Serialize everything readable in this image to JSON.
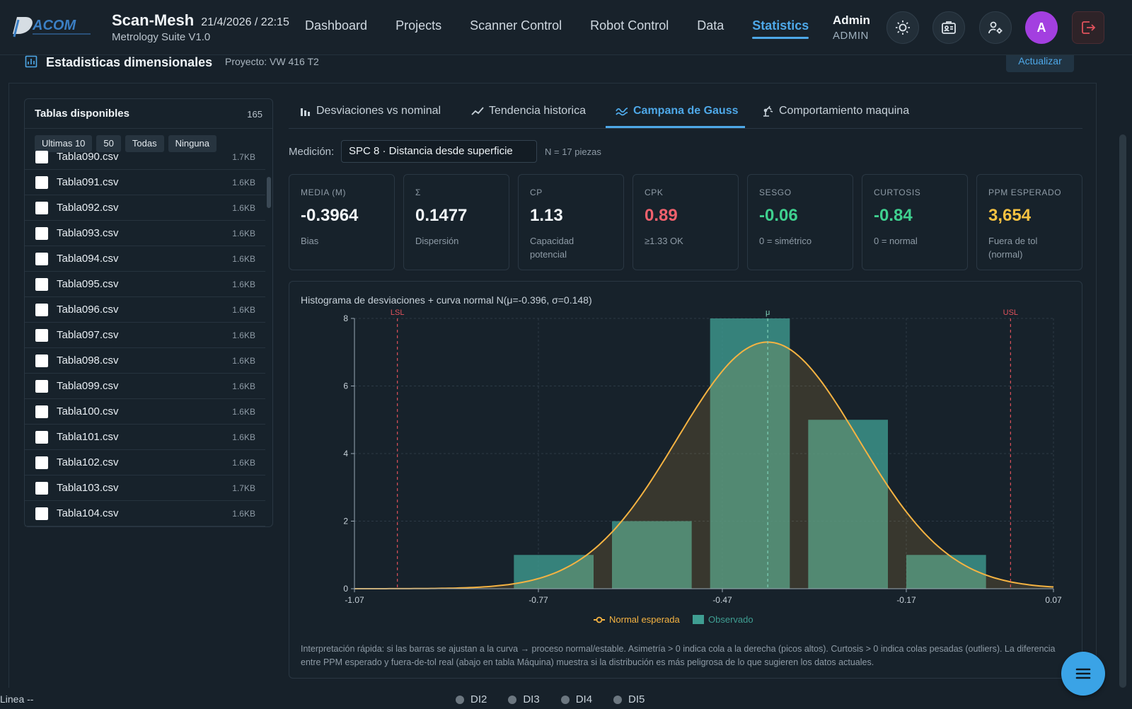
{
  "header": {
    "title": "Scan-Mesh",
    "datetime": "21/4/2026 / 22:15",
    "subtitle": "Metrology Suite V1.0",
    "nav": [
      "Dashboard",
      "Projects",
      "Scanner Control",
      "Robot Control",
      "Data",
      "Statistics"
    ],
    "active_nav": "Statistics",
    "user_name": "Admin",
    "user_role": "ADMIN",
    "avatar_letter": "A",
    "icons": [
      "sun-icon",
      "id-card-icon",
      "user-settings-icon",
      "logout-icon"
    ]
  },
  "page": {
    "title": "Estadisticas dimensionales",
    "project": "Proyecto: VW 416 T2",
    "refresh_label": "Actualizar"
  },
  "tables_panel": {
    "title": "Tablas disponibles",
    "count": "165",
    "filters": [
      "Ultimas 10",
      "50",
      "Todas",
      "Ninguna"
    ],
    "files": [
      {
        "name": "Tabla090.csv",
        "size": "1.7KB"
      },
      {
        "name": "Tabla091.csv",
        "size": "1.6KB"
      },
      {
        "name": "Tabla092.csv",
        "size": "1.6KB"
      },
      {
        "name": "Tabla093.csv",
        "size": "1.6KB"
      },
      {
        "name": "Tabla094.csv",
        "size": "1.6KB"
      },
      {
        "name": "Tabla095.csv",
        "size": "1.6KB"
      },
      {
        "name": "Tabla096.csv",
        "size": "1.6KB"
      },
      {
        "name": "Tabla097.csv",
        "size": "1.6KB"
      },
      {
        "name": "Tabla098.csv",
        "size": "1.6KB"
      },
      {
        "name": "Tabla099.csv",
        "size": "1.6KB"
      },
      {
        "name": "Tabla100.csv",
        "size": "1.6KB"
      },
      {
        "name": "Tabla101.csv",
        "size": "1.6KB"
      },
      {
        "name": "Tabla102.csv",
        "size": "1.6KB"
      },
      {
        "name": "Tabla103.csv",
        "size": "1.7KB"
      },
      {
        "name": "Tabla104.csv",
        "size": "1.6KB"
      }
    ]
  },
  "tabs": [
    {
      "label": "Desviaciones vs nominal",
      "icon": "bar-chart-icon"
    },
    {
      "label": "Tendencia historica",
      "icon": "trend-line-icon"
    },
    {
      "label": "Campana de Gauss",
      "icon": "bell-curve-icon",
      "active": true
    },
    {
      "label": "Comportamiento maquina",
      "icon": "machine-icon"
    }
  ],
  "measurement": {
    "label": "Medición:",
    "value": "SPC 8 · Distancia desde superficie",
    "n": "N = 17 piezas"
  },
  "cards": [
    {
      "label": "MEDIA (M)",
      "value": "-0.3964",
      "sub": "Bias",
      "color": "#f2f6f9"
    },
    {
      "label": "Σ",
      "value": "0.1477",
      "sub": "Dispersión",
      "color": "#f2f6f9"
    },
    {
      "label": "CP",
      "value": "1.13",
      "sub": "Capacidad potencial",
      "color": "#f2f6f9"
    },
    {
      "label": "CPK",
      "value": "0.89",
      "sub": "≥1.33 OK",
      "color": "#f0616d"
    },
    {
      "label": "SESGO",
      "value": "-0.06",
      "sub": "0 = simétrico",
      "color": "#3fd08f"
    },
    {
      "label": "CURTOSIS",
      "value": "-0.84",
      "sub": "0 = normal",
      "color": "#3fd08f"
    },
    {
      "label": "PPM ESPERADO",
      "value": "3,654",
      "sub": "Fuera de tol (normal)",
      "color": "#f5c242"
    }
  ],
  "chart": {
    "title": "Histograma de desviaciones + curva normal N(μ=-0.396, σ=0.148)",
    "interpretation": "Interpretación rápida: si las barras se ajustan a la curva → proceso normal/estable. Asimetría > 0 indica cola a la derecha (picos altos). Curtosis > 0 indica colas pesadas (outliers). La diferencia entre PPM esperado y fuera-de-tol real (abajo en tabla Máquina) muestra si la distribución es más peligrosa de lo que sugieren los datos actuales."
  },
  "chart_data": {
    "type": "bar",
    "title": "Histograma de desviaciones + curva normal N(μ=-0.396, σ=0.148)",
    "x_ticks": [
      -1.07,
      -0.77,
      -0.47,
      -0.17,
      0.07
    ],
    "x_tick_labels": [
      "-1.07",
      "-0.77",
      "-0.47",
      "-0.17",
      "0.07"
    ],
    "xlim": [
      -1.07,
      0.07
    ],
    "ylim": [
      0,
      8
    ],
    "y_ticks": [
      0,
      2,
      4,
      6,
      8
    ],
    "bins": [
      {
        "x0": -0.81,
        "x1": -0.68,
        "count": 1
      },
      {
        "x0": -0.65,
        "x1": -0.52,
        "count": 2
      },
      {
        "x0": -0.49,
        "x1": -0.36,
        "count": 8
      },
      {
        "x0": -0.33,
        "x1": -0.2,
        "count": 5
      },
      {
        "x0": -0.17,
        "x1": -0.04,
        "count": 1
      }
    ],
    "normal_curve": {
      "mu": -0.396,
      "sigma": 0.148,
      "peak": 7.3
    },
    "markers": [
      {
        "label": "LSL",
        "x": -1.0,
        "color": "#e0525c"
      },
      {
        "label": "μ",
        "x": -0.396,
        "color": "#7fd1b9"
      },
      {
        "label": "USL",
        "x": 0.0,
        "color": "#e0525c"
      }
    ],
    "legend": [
      {
        "name": "Normal esperada",
        "color": "#f5b342"
      },
      {
        "name": "Observado",
        "color": "#3f9e92"
      }
    ],
    "legend_position": "bottom",
    "grid": true
  },
  "footer": {
    "line": "Linea --",
    "series": [
      "DI2",
      "DI3",
      "DI4",
      "DI5"
    ]
  }
}
